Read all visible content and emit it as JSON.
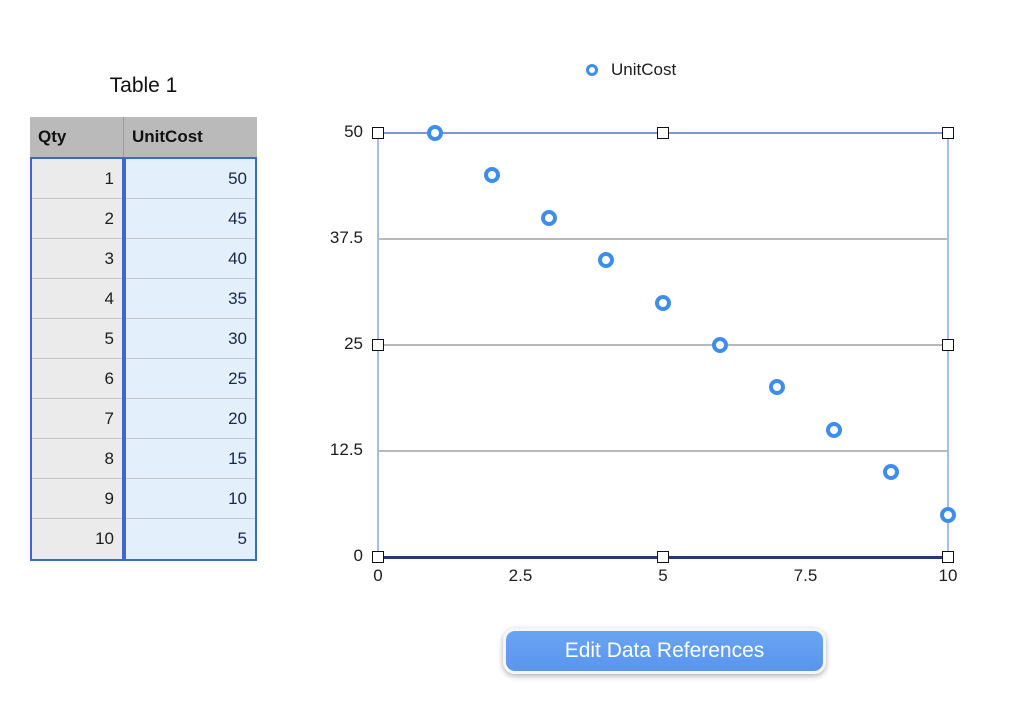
{
  "table": {
    "title": "Table 1",
    "columns": [
      "Qty",
      "UnitCost"
    ],
    "rows": [
      [
        1,
        50
      ],
      [
        2,
        45
      ],
      [
        3,
        40
      ],
      [
        4,
        35
      ],
      [
        5,
        30
      ],
      [
        6,
        25
      ],
      [
        7,
        20
      ],
      [
        8,
        15
      ],
      [
        9,
        10
      ],
      [
        10,
        5
      ]
    ]
  },
  "chart_data": {
    "type": "scatter",
    "series": [
      {
        "name": "UnitCost",
        "x": [
          1,
          2,
          3,
          4,
          5,
          6,
          7,
          8,
          9,
          10
        ],
        "y": [
          50,
          45,
          40,
          35,
          30,
          25,
          20,
          15,
          10,
          5
        ]
      }
    ],
    "xlim": [
      0,
      10
    ],
    "ylim": [
      0,
      50
    ],
    "x_ticks": [
      0,
      2.5,
      5,
      7.5,
      10
    ],
    "y_ticks": [
      50,
      37.5,
      25,
      12.5,
      0
    ],
    "legend": {
      "entries": [
        "UnitCost"
      ],
      "position": "top"
    },
    "grid": "horizontal-only",
    "marker": "open-circle",
    "selected": true
  },
  "button": {
    "label": "Edit Data References"
  },
  "colors": {
    "marker_blue": "#3e8ded",
    "selection_border_blue": "#4067cd",
    "chart_frame_top": "#7e96de",
    "chart_frame_sides": "#a6bdf2",
    "axis_navy": "#29387b",
    "grid_gray": "#b9b9b9",
    "table_header_gray": "#bababa",
    "qty_cell_bg": "#ebebeb",
    "unitcost_cell_bg": "#e4effc",
    "button_blue": "#5f9cf0"
  }
}
